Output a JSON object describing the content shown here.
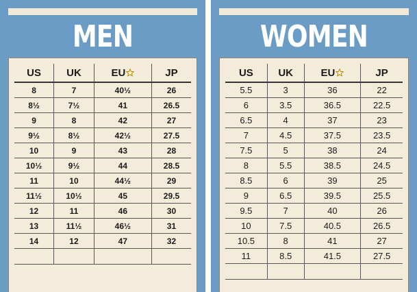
{
  "panels": [
    {
      "title": "MEN",
      "columns": [
        "US",
        "UK",
        "EU",
        "JP"
      ],
      "rows": [
        [
          "8",
          "7",
          "40½",
          "26"
        ],
        [
          "8½",
          "7½",
          "41",
          "26.5"
        ],
        [
          "9",
          "8",
          "42",
          "27"
        ],
        [
          "9½",
          "8½",
          "42½",
          "27.5"
        ],
        [
          "10",
          "9",
          "43",
          "28"
        ],
        [
          "10½",
          "9½",
          "44",
          "28.5"
        ],
        [
          "11",
          "10",
          "44½",
          "29"
        ],
        [
          "11½",
          "10½",
          "45",
          "29.5"
        ],
        [
          "12",
          "11",
          "46",
          "30"
        ],
        [
          "13",
          "11½",
          "46½",
          "31"
        ],
        [
          "14",
          "12",
          "47",
          "32"
        ]
      ]
    },
    {
      "title": "WOMEN",
      "columns": [
        "US",
        "UK",
        "EU",
        "JP"
      ],
      "rows": [
        [
          "5.5",
          "3",
          "36",
          "22"
        ],
        [
          "6",
          "3.5",
          "36.5",
          "22.5"
        ],
        [
          "6.5",
          "4",
          "37",
          "23"
        ],
        [
          "7",
          "4.5",
          "37.5",
          "23.5"
        ],
        [
          "7.5",
          "5",
          "38",
          "24"
        ],
        [
          "8",
          "5.5",
          "38.5",
          "24.5"
        ],
        [
          "8.5",
          "6",
          "39",
          "25"
        ],
        [
          "9",
          "6.5",
          "39.5",
          "25.5"
        ],
        [
          "9.5",
          "7",
          "40",
          "26"
        ],
        [
          "10",
          "7.5",
          "40.5",
          "26.5"
        ],
        [
          "10.5",
          "8",
          "41",
          "27"
        ],
        [
          "11",
          "8.5",
          "41.5",
          "27.5"
        ]
      ]
    }
  ]
}
